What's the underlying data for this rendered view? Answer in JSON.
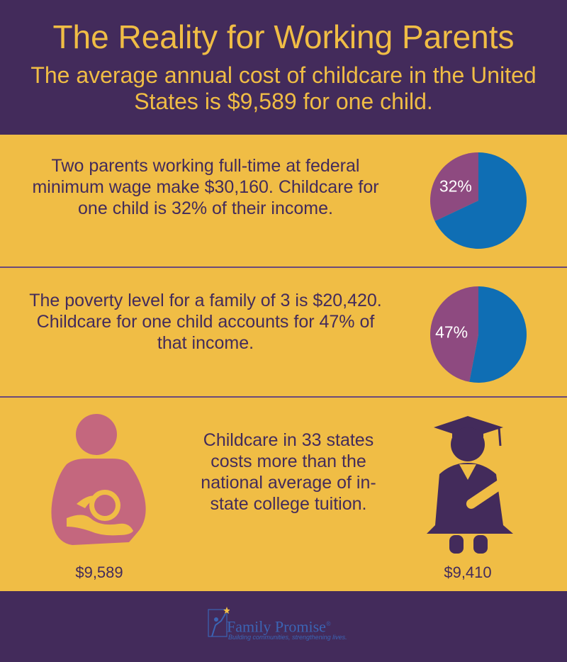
{
  "header": {
    "title": "The Reality for Working Parents",
    "subtitle": "The average annual cost of childcare in the United States is $9,589 for one child."
  },
  "facts": [
    {
      "text": "Two parents working full-time at federal minimum wage make $30,160.  Childcare for one child is 32% of their income."
    },
    {
      "text": "The poverty level for a family of 3 is $20,420.  Childcare for one child accounts for 47% of that income."
    },
    {
      "text": "Childcare in 33 states costs more than the national average of  in-state college tuition."
    }
  ],
  "comparison": {
    "childcare_amount": "$9,589",
    "tuition_amount": "$9,410",
    "childcare_icon": "mother-with-child-icon",
    "tuition_icon": "graduate-with-diploma-icon"
  },
  "colors": {
    "header_bg": "#432b5b",
    "band_bg": "#f0bd45",
    "pie_share": "#8e4a80",
    "pie_rest": "#0f6eb4",
    "text_dark": "#432b5b",
    "mother_icon": "#c4677e",
    "logo_blue": "#3b64b4"
  },
  "chart_data": [
    {
      "type": "pie",
      "slices": [
        {
          "label": "32%",
          "value": 32,
          "color": "#8e4a80"
        },
        {
          "label": "",
          "value": 68,
          "color": "#0f6eb4"
        }
      ]
    },
    {
      "type": "pie",
      "slices": [
        {
          "label": "47%",
          "value": 47,
          "color": "#8e4a80"
        },
        {
          "label": "",
          "value": 53,
          "color": "#0f6eb4"
        }
      ]
    }
  ],
  "footer": {
    "logo_name": "Family Promise",
    "logo_mark": "®",
    "logo_tagline": "Building communities, strengthening lives.",
    "logo_icon": "family-promise-logo-icon"
  }
}
